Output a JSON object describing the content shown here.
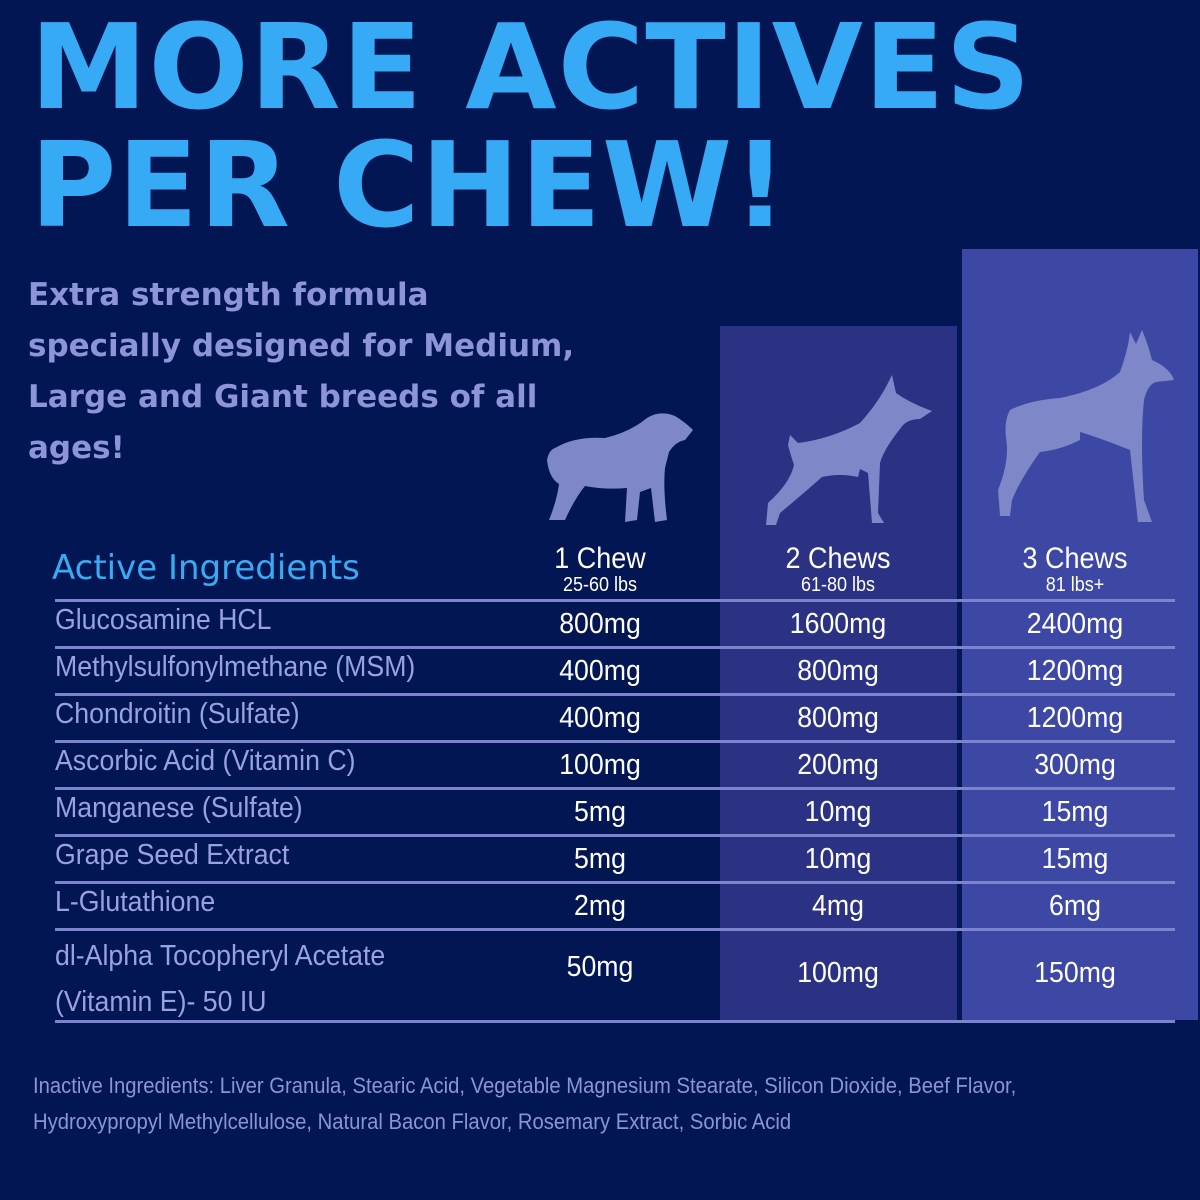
{
  "title": "MORE ACTIVES PER CHEW!",
  "title_lines": [
    "MORE ACTIVES",
    "PER CHEW!"
  ],
  "subtitle": "Extra strength formula specially designed for Medium, Large and Giant breeds of all ages!",
  "colors": {
    "background": "#021654",
    "title": "#36aaf5",
    "column2": "#2b3283",
    "column3": "#3d47a4",
    "dog": "#7e87c8"
  },
  "table": {
    "header": "Active Ingredients",
    "columns": [
      {
        "label": "1 Chew",
        "weight": "25-60 lbs",
        "icon": "small-dog-icon"
      },
      {
        "label": "2 Chews",
        "weight": "61-80 lbs",
        "icon": "doberman-icon"
      },
      {
        "label": "3 Chews",
        "weight": "81 lbs+",
        "icon": "great-dane-icon"
      }
    ],
    "rows": [
      {
        "name": "Glucosamine HCL",
        "values": [
          "800mg",
          "1600mg",
          "2400mg"
        ]
      },
      {
        "name": "Methylsulfonylmethane (MSM)",
        "values": [
          "400mg",
          "800mg",
          "1200mg"
        ]
      },
      {
        "name": "Chondroitin (Sulfate)",
        "values": [
          "400mg",
          "800mg",
          "1200mg"
        ]
      },
      {
        "name": "Ascorbic Acid (Vitamin C)",
        "values": [
          "100mg",
          "200mg",
          "300mg"
        ]
      },
      {
        "name": "Manganese (Sulfate)",
        "values": [
          "5mg",
          "10mg",
          "15mg"
        ]
      },
      {
        "name": "Grape Seed Extract",
        "values": [
          "5mg",
          "10mg",
          "15mg"
        ]
      },
      {
        "name": "L-Glutathione",
        "values": [
          "2mg",
          "4mg",
          "6mg"
        ]
      },
      {
        "name": "dl-Alpha Tocopheryl Acetate",
        "name2": "(Vitamin E)- 50 IU",
        "values": [
          "50mg",
          "100mg",
          "150mg"
        ]
      }
    ]
  },
  "inactive": "Inactive Ingredients: Liver Granula, Stearic Acid, Vegetable Magnesium Stearate, Silicon Dioxide, Beef Flavor, Hydroxypropyl Methylcellulose, Natural Bacon Flavor, Rosemary Extract, Sorbic Acid"
}
